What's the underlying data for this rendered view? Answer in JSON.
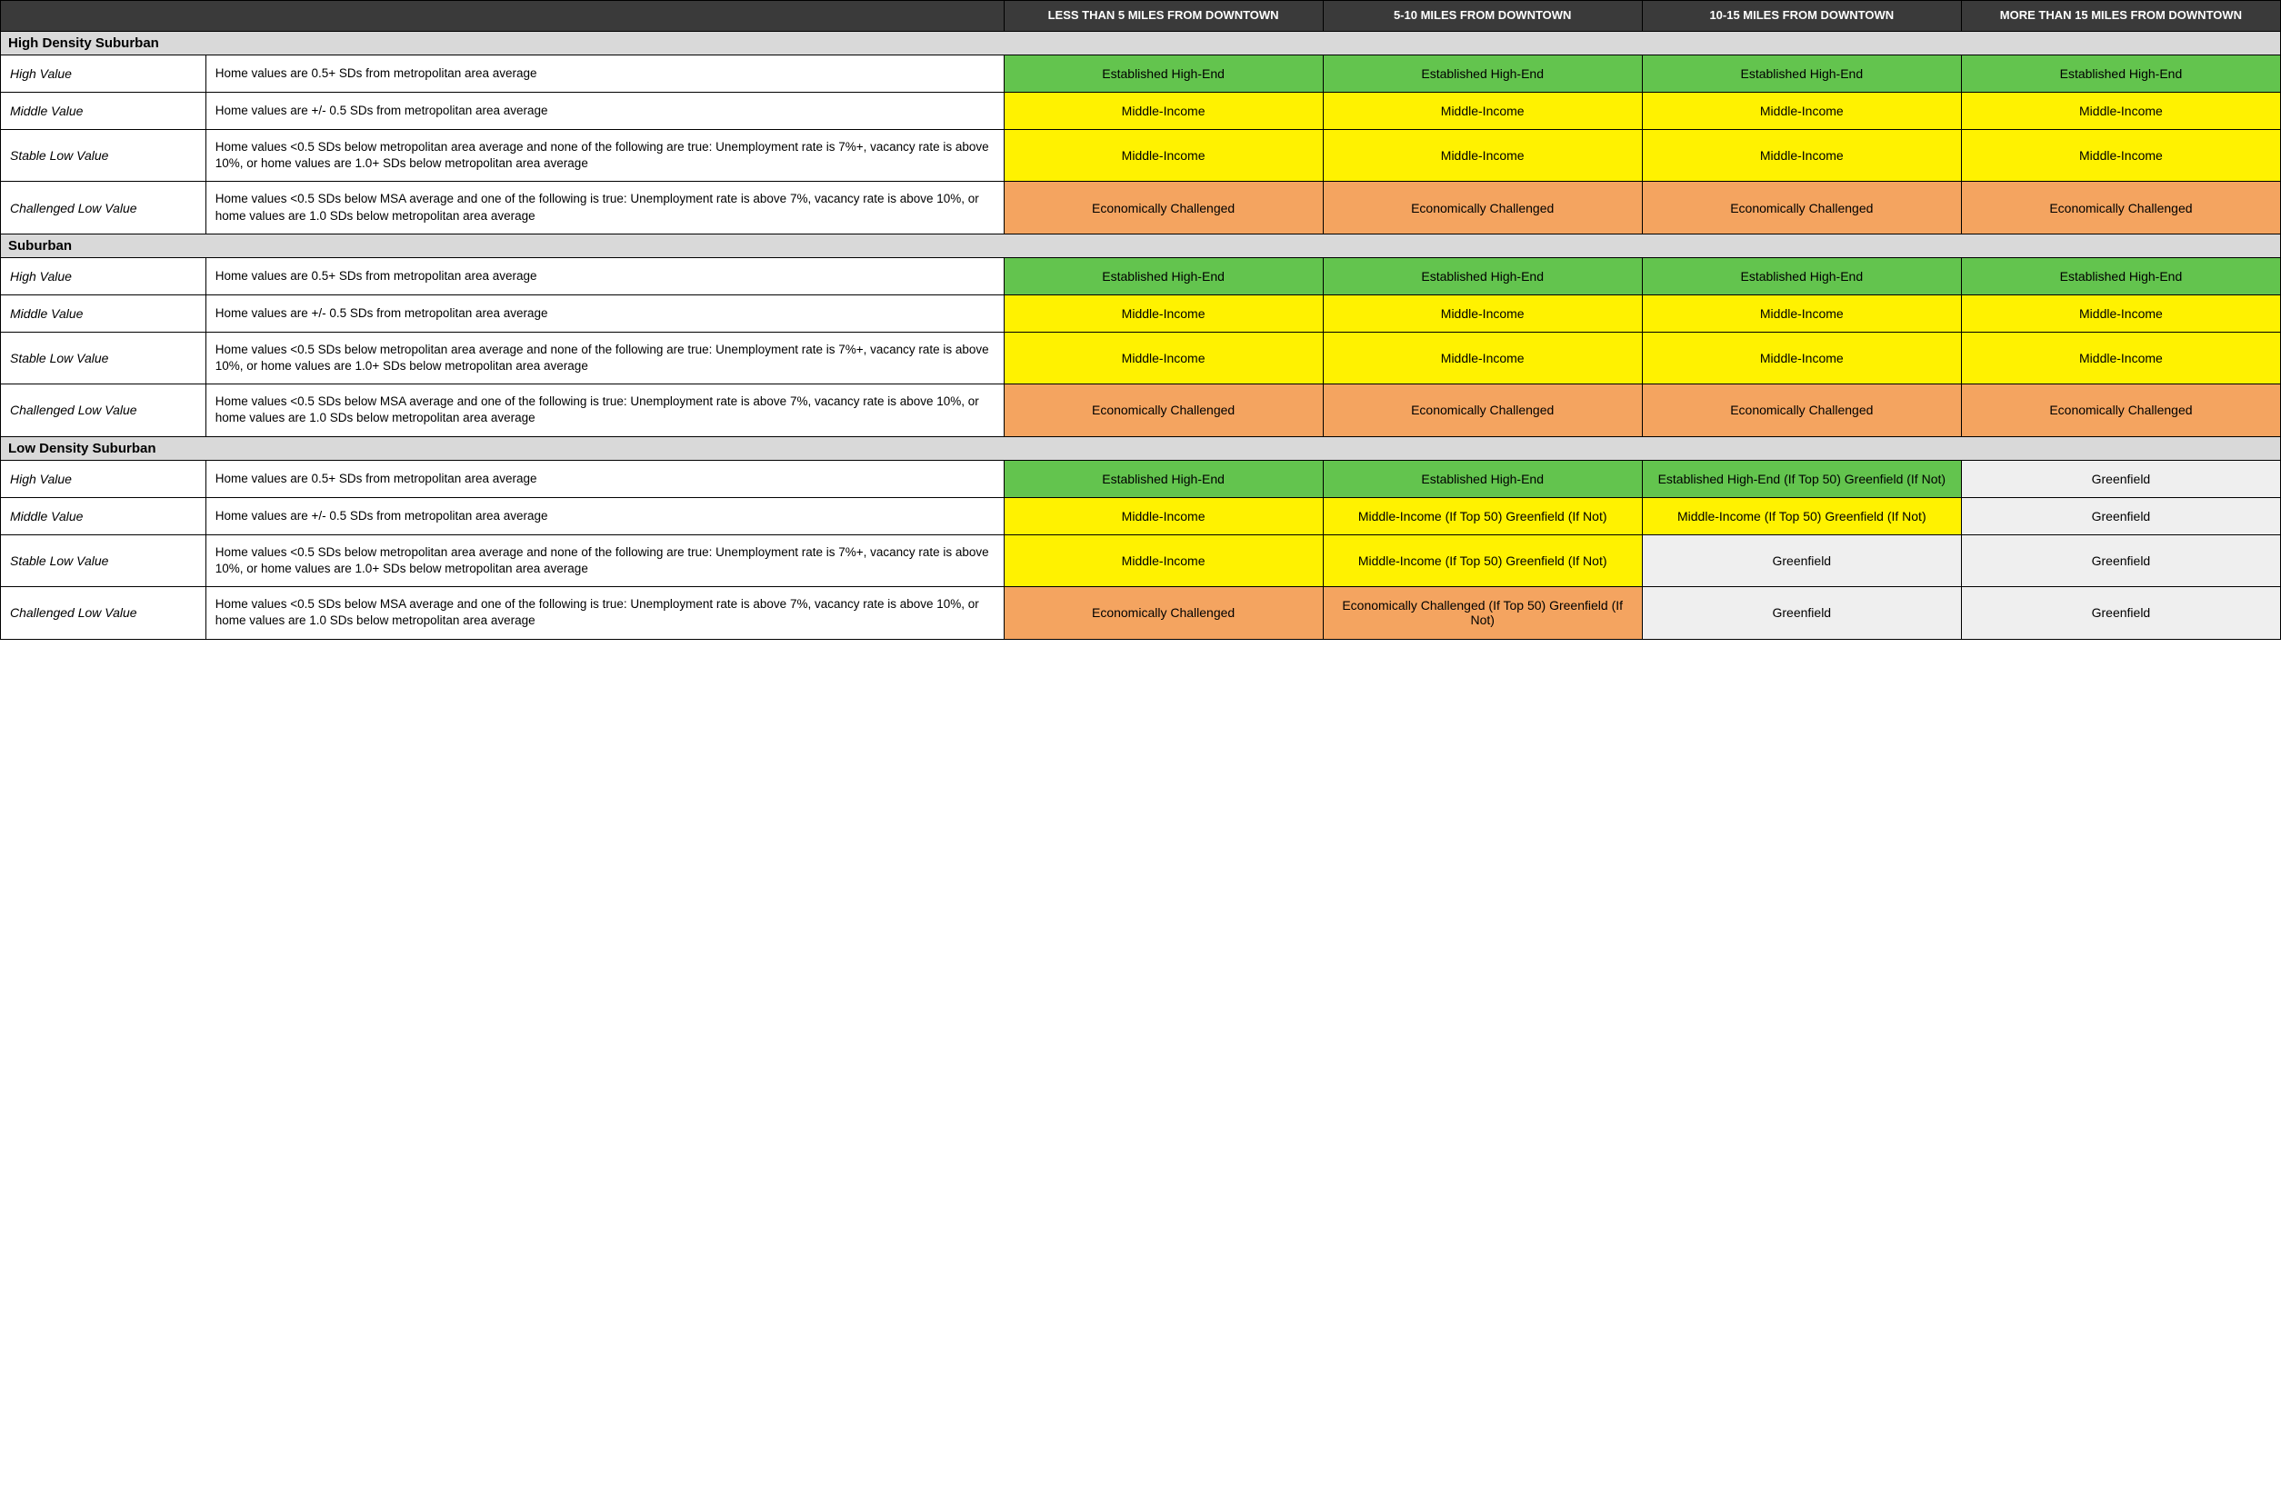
{
  "colors": {
    "header_bg": "#3a3a3a",
    "header_fg": "#ffffff",
    "section_bg": "#d9d9d9",
    "green": "#63c44e",
    "yellow": "#fff200",
    "orange": "#f4a460",
    "grey": "#efefef",
    "border": "#000000",
    "text": "#000000"
  },
  "headers": [
    "LESS THAN 5 MILES FROM DOWNTOWN",
    "5-10 MILES FROM DOWNTOWN",
    "10-15 MILES FROM DOWNTOWN",
    "MORE THAN 15 MILES FROM DOWNTOWN"
  ],
  "rowLabels": {
    "hv": "High Value",
    "mv": "Middle Value",
    "slv": "Stable Low Value",
    "clv": "Challenged Low Value"
  },
  "rowDescs": {
    "hv": "Home values are 0.5+ SDs from metropolitan area average",
    "mv": "Home values are +/- 0.5 SDs from metropolitan area average",
    "slv": "Home values <0.5 SDs below metropolitan area average and none of the following are true: Unemployment rate is 7%+, vacancy rate is above 10%, or home values are 1.0+ SDs below metropolitan area average",
    "clv": "Home values <0.5 SDs below MSA average and one of the following is true: Unemployment rate is above 7%, vacancy rate is above 10%, or home values are 1.0 SDs below metropolitan area average"
  },
  "cellText": {
    "ehe": "Established High-End",
    "mi": "Middle-Income",
    "ec": "Economically Challenged",
    "gf": "Greenfield",
    "ehe_gf": "Established High-End (If Top 50) Greenfield (If Not)",
    "mi_gf": "Middle-Income (If Top 50) Greenfield (If Not)",
    "ec_gf": "Economically Challenged (If Top 50) Greenfield (If Not)"
  },
  "sections": [
    {
      "title": "High Density Suburban",
      "rows": [
        {
          "label": "hv",
          "cells": [
            [
              "ehe",
              "green"
            ],
            [
              "ehe",
              "green"
            ],
            [
              "ehe",
              "green"
            ],
            [
              "ehe",
              "green"
            ]
          ]
        },
        {
          "label": "mv",
          "cells": [
            [
              "mi",
              "yellow"
            ],
            [
              "mi",
              "yellow"
            ],
            [
              "mi",
              "yellow"
            ],
            [
              "mi",
              "yellow"
            ]
          ]
        },
        {
          "label": "slv",
          "cells": [
            [
              "mi",
              "yellow"
            ],
            [
              "mi",
              "yellow"
            ],
            [
              "mi",
              "yellow"
            ],
            [
              "mi",
              "yellow"
            ]
          ]
        },
        {
          "label": "clv",
          "cells": [
            [
              "ec",
              "orange"
            ],
            [
              "ec",
              "orange"
            ],
            [
              "ec",
              "orange"
            ],
            [
              "ec",
              "orange"
            ]
          ]
        }
      ]
    },
    {
      "title": "Suburban",
      "rows": [
        {
          "label": "hv",
          "cells": [
            [
              "ehe",
              "green"
            ],
            [
              "ehe",
              "green"
            ],
            [
              "ehe",
              "green"
            ],
            [
              "ehe",
              "green"
            ]
          ]
        },
        {
          "label": "mv",
          "cells": [
            [
              "mi",
              "yellow"
            ],
            [
              "mi",
              "yellow"
            ],
            [
              "mi",
              "yellow"
            ],
            [
              "mi",
              "yellow"
            ]
          ]
        },
        {
          "label": "slv",
          "cells": [
            [
              "mi",
              "yellow"
            ],
            [
              "mi",
              "yellow"
            ],
            [
              "mi",
              "yellow"
            ],
            [
              "mi",
              "yellow"
            ]
          ]
        },
        {
          "label": "clv",
          "cells": [
            [
              "ec",
              "orange"
            ],
            [
              "ec",
              "orange"
            ],
            [
              "ec",
              "orange"
            ],
            [
              "ec",
              "orange"
            ]
          ]
        }
      ]
    },
    {
      "title": "Low Density Suburban",
      "rows": [
        {
          "label": "hv",
          "cells": [
            [
              "ehe",
              "green"
            ],
            [
              "ehe",
              "green"
            ],
            [
              "ehe_gf",
              "green"
            ],
            [
              "gf",
              "grey"
            ]
          ]
        },
        {
          "label": "mv",
          "cells": [
            [
              "mi",
              "yellow"
            ],
            [
              "mi_gf",
              "yellow"
            ],
            [
              "mi_gf",
              "yellow"
            ],
            [
              "gf",
              "grey"
            ]
          ]
        },
        {
          "label": "slv",
          "cells": [
            [
              "mi",
              "yellow"
            ],
            [
              "mi_gf",
              "yellow"
            ],
            [
              "gf",
              "grey"
            ],
            [
              "gf",
              "grey"
            ]
          ]
        },
        {
          "label": "clv",
          "cells": [
            [
              "ec",
              "orange"
            ],
            [
              "ec_gf",
              "orange"
            ],
            [
              "gf",
              "grey"
            ],
            [
              "gf",
              "grey"
            ]
          ]
        }
      ]
    }
  ]
}
